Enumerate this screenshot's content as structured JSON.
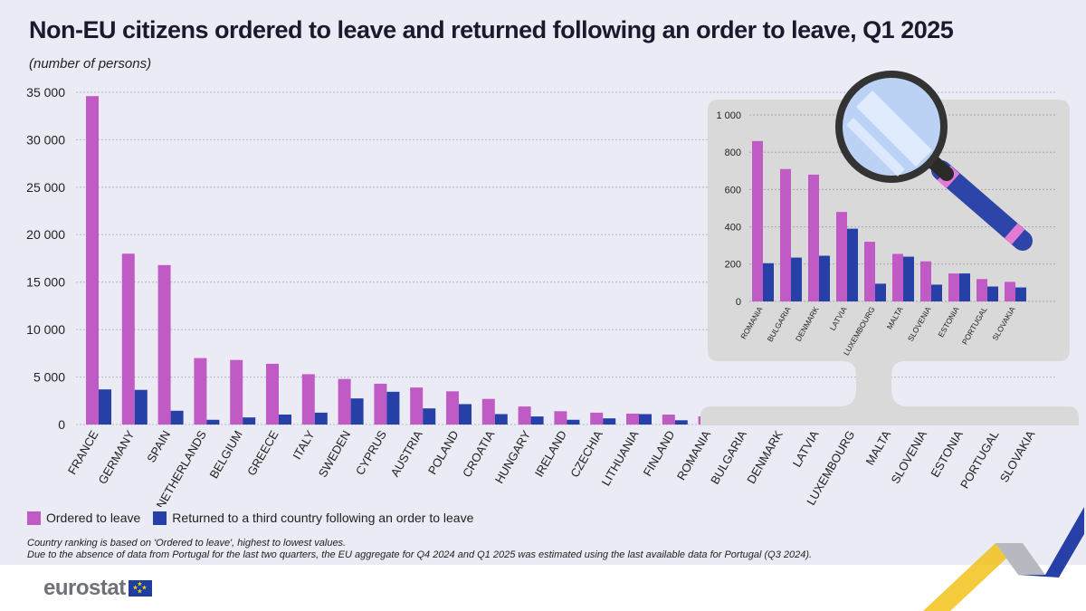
{
  "title": "Non-EU citizens ordered to leave and returned following an order to leave, Q1 2025",
  "subtitle": "(number of persons)",
  "legend": {
    "ordered": "Ordered to leave",
    "returned": "Returned to a third country following an order to leave"
  },
  "notes": [
    "Country ranking is based on 'Ordered to leave', highest to lowest values.",
    "Due to the absence of data from Portugal for the last two quarters, the EU aggregate for Q4 2024 and Q1 2025 was estimated using the last available data for Portugal (Q3 2024)."
  ],
  "brand": "eurostat",
  "colors": {
    "ordered": "#c05bc5",
    "returned": "#2740a8"
  },
  "chart_data": [
    {
      "type": "bar",
      "ylim": [
        0,
        35000
      ],
      "yticks": [
        0,
        5000,
        10000,
        15000,
        20000,
        25000,
        30000,
        35000
      ],
      "ytick_labels": [
        "0",
        "5 000",
        "10 000",
        "15 000",
        "20 000",
        "25 000",
        "30 000",
        "35 000"
      ],
      "categories": [
        "FRANCE",
        "GERMANY",
        "SPAIN",
        "NETHERLANDS",
        "BELGIUM",
        "GREECE",
        "ITALY",
        "SWEDEN",
        "CYPRUS",
        "AUSTRIA",
        "POLAND",
        "CROATIA",
        "HUNGARY",
        "IRELAND",
        "CZECHIA",
        "LITHUANIA",
        "FINLAND",
        "ROMANIA",
        "BULGARIA",
        "DENMARK",
        "LATVIA",
        "LUXEMBOURG",
        "MALTA",
        "SLOVENIA",
        "ESTONIA",
        "PORTUGAL",
        "SLOVAKIA"
      ],
      "series": [
        {
          "name": "Ordered to leave",
          "values": [
            34600,
            18000,
            16800,
            7000,
            6800,
            6400,
            5300,
            4800,
            4300,
            3900,
            3500,
            2700,
            1900,
            1400,
            1250,
            1150,
            1050,
            860,
            710,
            680,
            480,
            320,
            255,
            215,
            150,
            120,
            105
          ]
        },
        {
          "name": "Returned to a third country following an order to leave",
          "values": [
            3700,
            3650,
            1450,
            500,
            750,
            1050,
            1250,
            2750,
            3450,
            1700,
            2150,
            1100,
            850,
            500,
            650,
            1100,
            450,
            205,
            235,
            245,
            390,
            95,
            240,
            90,
            150,
            80,
            75
          ]
        }
      ],
      "grid": true
    },
    {
      "type": "bar",
      "ylim": [
        0,
        1000
      ],
      "yticks": [
        0,
        200,
        400,
        600,
        800,
        1000
      ],
      "ytick_labels": [
        "0",
        "200",
        "400",
        "600",
        "800",
        "1 000"
      ],
      "categories": [
        "ROMANIA",
        "BULGARIA",
        "DENMARK",
        "LATVIA",
        "LUXEMBOURG",
        "MALTA",
        "SLOVENIA",
        "ESTONIA",
        "PORTUGAL",
        "SLOVAKIA"
      ],
      "series": [
        {
          "name": "Ordered to leave",
          "values": [
            860,
            710,
            680,
            480,
            320,
            255,
            215,
            150,
            120,
            105
          ]
        },
        {
          "name": "Returned to a third country following an order to leave",
          "values": [
            205,
            235,
            245,
            390,
            95,
            240,
            90,
            150,
            80,
            75
          ]
        }
      ],
      "grid": true
    }
  ]
}
